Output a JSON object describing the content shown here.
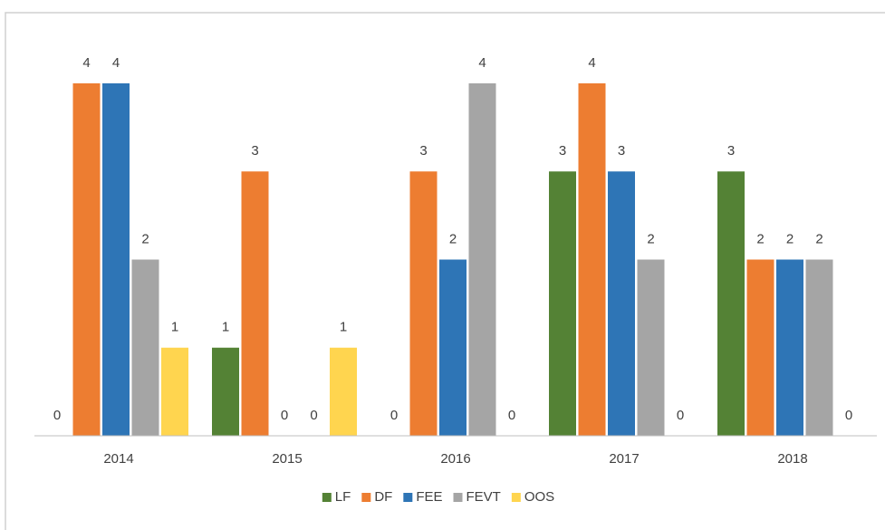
{
  "chart_data": {
    "type": "bar",
    "categories": [
      "2014",
      "2015",
      "2016",
      "2017",
      "2018"
    ],
    "series": [
      {
        "name": "LF",
        "color": "#548235",
        "values": [
          0,
          1,
          0,
          3,
          3
        ]
      },
      {
        "name": "DF",
        "color": "#ed7d31",
        "values": [
          4,
          3,
          3,
          4,
          2
        ]
      },
      {
        "name": "FEE",
        "color": "#2e75b6",
        "values": [
          4,
          0,
          2,
          3,
          2
        ]
      },
      {
        "name": "FEVT",
        "color": "#a5a5a5",
        "values": [
          2,
          0,
          4,
          2,
          2
        ]
      },
      {
        "name": "OOS",
        "color": "#ffd54f",
        "values": [
          1,
          1,
          0,
          0,
          0
        ]
      }
    ],
    "legend": "bottom"
  }
}
